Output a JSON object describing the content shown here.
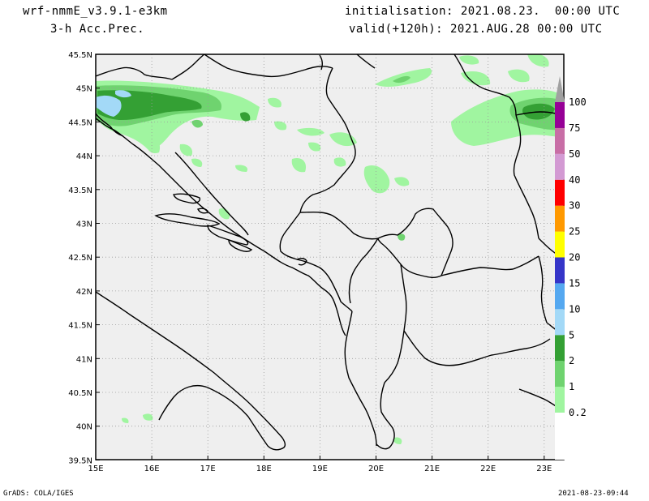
{
  "header": {
    "model": "wrf-nmmE_v3.9.1-e3km",
    "field": "3-h Acc.Prec.",
    "initialisation": "initialisation: 2021.08.23.  00:00 UTC",
    "valid": "valid(+120h): 2021.AUG.28 00:00 UTC"
  },
  "footer": {
    "credit": "GrADS: COLA/IGES",
    "timestamp": "2021-08-23-09:44"
  },
  "map": {
    "lat_labels": [
      "45.5N",
      "45N",
      "44.5N",
      "44N",
      "43.5N",
      "43N",
      "42.5N",
      "42N",
      "41.5N",
      "41N",
      "40.5N",
      "40N",
      "39.5N"
    ],
    "lon_labels": [
      "15E",
      "16E",
      "17E",
      "18E",
      "19E",
      "20E",
      "21E",
      "22E",
      "23E"
    ],
    "background_color": "#efefef"
  },
  "colorbar": {
    "levels": [
      {
        "label": "0.2",
        "color": "#a0f5a0"
      },
      {
        "label": "1",
        "color": "#6fd36f"
      },
      {
        "label": "2",
        "color": "#34a034"
      },
      {
        "label": "5",
        "color": "#a3d9f7"
      },
      {
        "label": "10",
        "color": "#55a8f0"
      },
      {
        "label": "15",
        "color": "#3535c8"
      },
      {
        "label": "20",
        "color": "#ffff00"
      },
      {
        "label": "25",
        "color": "#ff9900"
      },
      {
        "label": "30",
        "color": "#ff0000"
      },
      {
        "label": "40",
        "color": "#d39ad3"
      },
      {
        "label": "50",
        "color": "#c86ea6"
      },
      {
        "label": "75",
        "color": "#960096"
      },
      {
        "label": "100",
        "color": ""
      }
    ],
    "top_color": "#a0a0a0"
  }
}
